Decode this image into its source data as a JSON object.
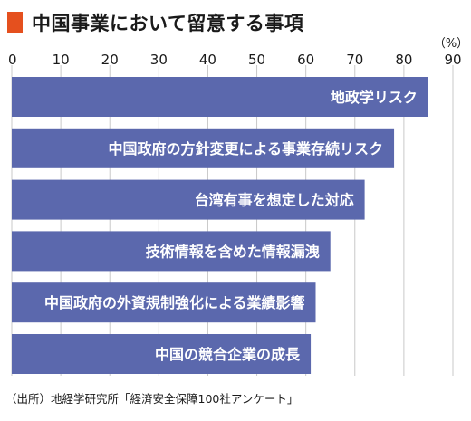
{
  "title": "中国事業において留意する事項",
  "source": "（出所）地経学研究所「経済安全保障100社アンケート」",
  "colors": {
    "bar": "#5b68ad",
    "title_marker": "#e5501e",
    "grid": "#c8c8c8",
    "axis_text": "#1a1a1a",
    "bar_text": "#ffffff"
  },
  "chart_data": {
    "type": "bar",
    "orientation": "horizontal",
    "unit": "（%）",
    "xlim": [
      0,
      90
    ],
    "ticks": [
      0,
      10,
      20,
      30,
      40,
      50,
      60,
      70,
      80,
      90
    ],
    "tick_labels": [
      "0",
      "10",
      "20",
      "30",
      "40",
      "50",
      "60",
      "70",
      "80",
      "90"
    ],
    "grid": true,
    "categories": [
      "地政学リスク",
      "中国政府の方針変更による事業存続リスク",
      "台湾有事を想定した対応",
      "技術情報を含めた情報漏洩",
      "中国政府の外資規制強化による業績影響",
      "中国の競合企業の成長"
    ],
    "values": [
      85,
      78,
      72,
      65,
      62,
      61
    ]
  }
}
